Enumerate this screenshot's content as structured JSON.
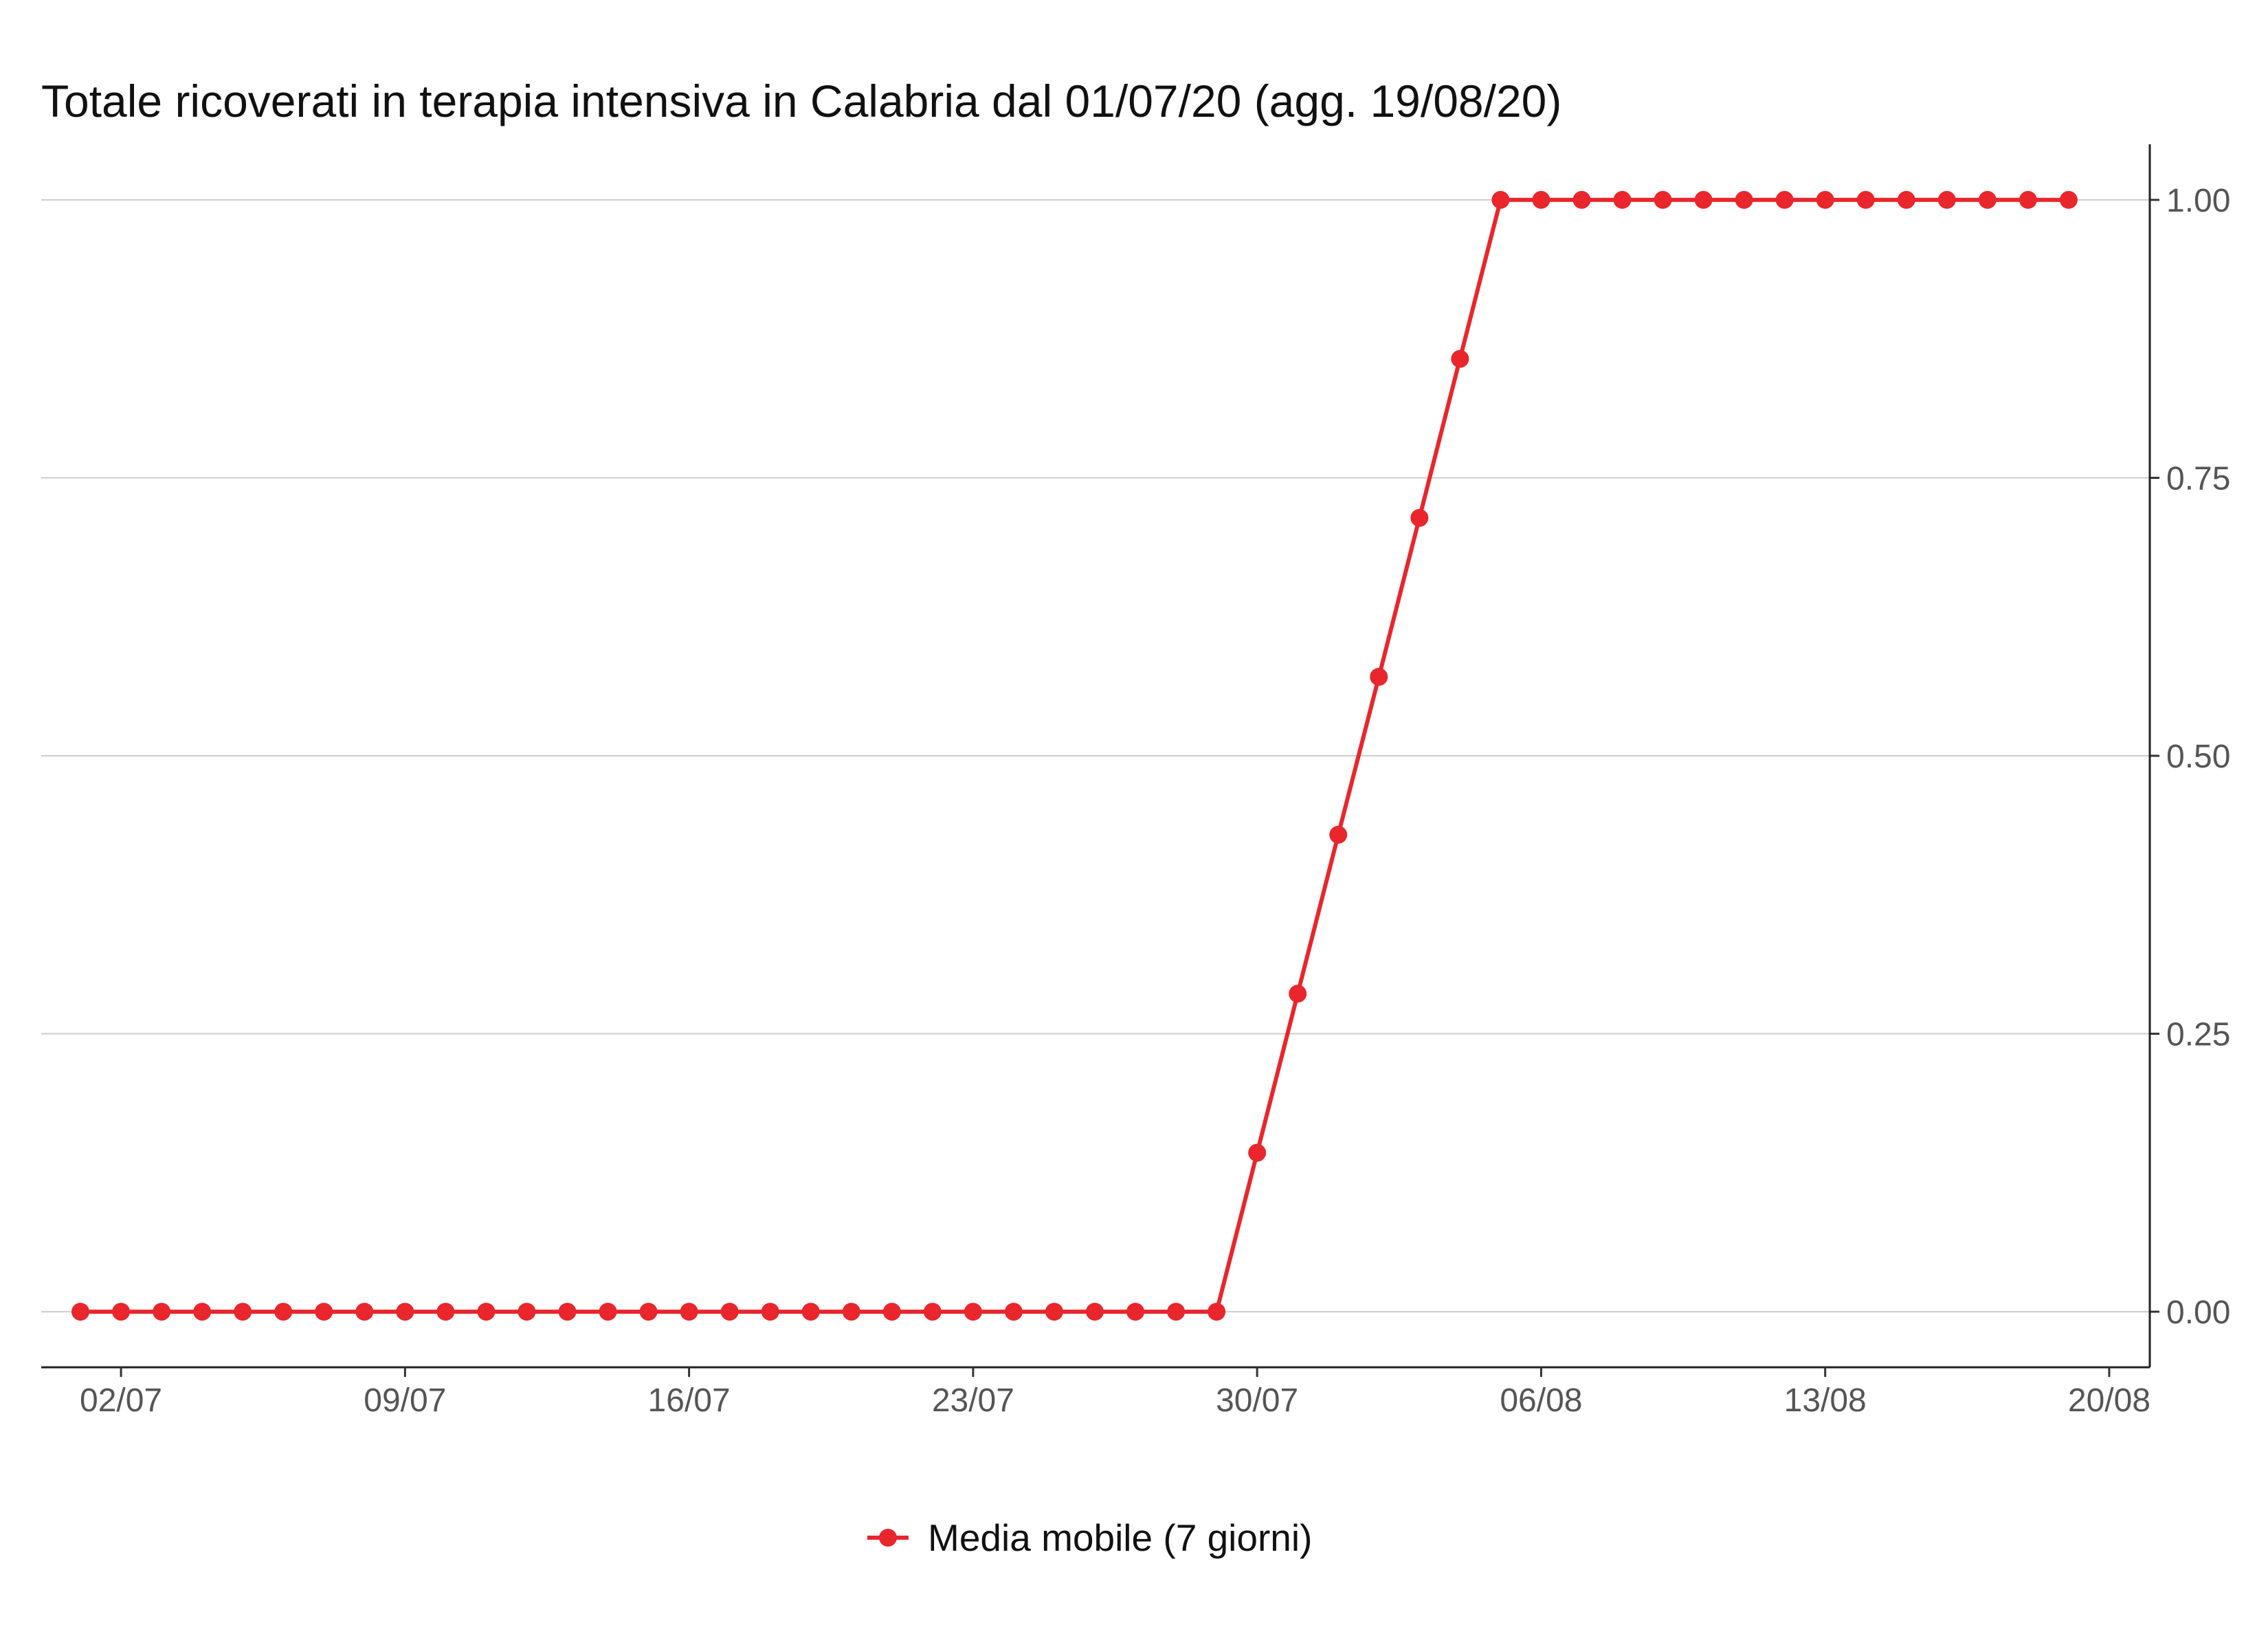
{
  "chart_data": {
    "type": "line",
    "title": "Totale ricoverati in terapia intensiva in Calabria dal 01/07/20 (agg. 19/08/20)",
    "xlabel": "",
    "ylabel": "",
    "x_axis_type": "date",
    "x_ticks": [
      "02/07",
      "09/07",
      "16/07",
      "23/07",
      "30/07",
      "06/08",
      "13/08",
      "20/08"
    ],
    "y_ticks": [
      "0.00",
      "0.25",
      "0.50",
      "0.75",
      "1.00"
    ],
    "ylim": [
      -0.05,
      1.05
    ],
    "xlim": [
      "30/06",
      "21/08"
    ],
    "y_axis_position": "right",
    "grid": "horizontal",
    "legend_position": "bottom",
    "series": [
      {
        "name": "Media mobile (7 giorni)",
        "color": "#e8262c",
        "marker": "circle",
        "x": [
          "01/07",
          "02/07",
          "03/07",
          "04/07",
          "05/07",
          "06/07",
          "07/07",
          "08/07",
          "09/07",
          "10/07",
          "11/07",
          "12/07",
          "13/07",
          "14/07",
          "15/07",
          "16/07",
          "17/07",
          "18/07",
          "19/07",
          "20/07",
          "21/07",
          "22/07",
          "23/07",
          "24/07",
          "25/07",
          "26/07",
          "27/07",
          "28/07",
          "29/07",
          "30/07",
          "31/07",
          "01/08",
          "02/08",
          "03/08",
          "04/08",
          "05/08",
          "06/08",
          "07/08",
          "08/08",
          "09/08",
          "10/08",
          "11/08",
          "12/08",
          "13/08",
          "14/08",
          "15/08",
          "16/08",
          "17/08",
          "18/08",
          "19/08"
        ],
        "values": [
          0,
          0,
          0,
          0,
          0,
          0,
          0,
          0,
          0,
          0,
          0,
          0,
          0,
          0,
          0,
          0,
          0,
          0,
          0,
          0,
          0,
          0,
          0,
          0,
          0,
          0,
          0,
          0,
          0,
          0.143,
          0.286,
          0.429,
          0.571,
          0.714,
          0.857,
          1,
          1,
          1,
          1,
          1,
          1,
          1,
          1,
          1,
          1,
          1,
          1,
          1,
          1,
          1
        ]
      }
    ]
  }
}
